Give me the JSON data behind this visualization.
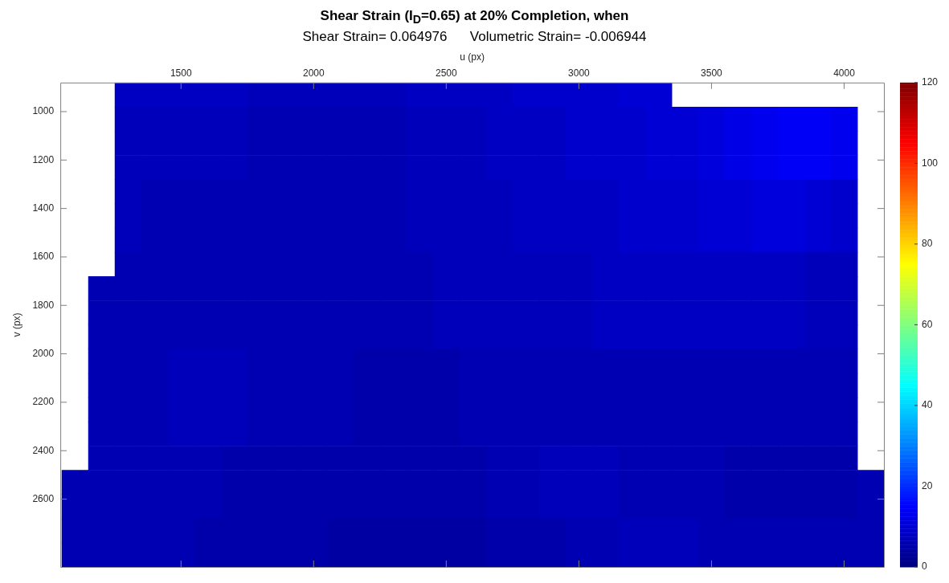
{
  "chart_data": {
    "type": "heatmap",
    "title": "Shear Strain (I$_{D}$=0.65) at 20% Completion, when",
    "subtitle": "Shear Strain= 0.064976      Volumetric Strain= -0.006944",
    "xlabel": "u (px)",
    "ylabel": "v (px)",
    "x": [
      1100,
      1200,
      1300,
      1400,
      1500,
      1600,
      1700,
      1800,
      1900,
      2000,
      2100,
      2200,
      2300,
      2400,
      2500,
      2600,
      2700,
      2800,
      2900,
      3000,
      3100,
      3200,
      3300,
      3400,
      3500,
      3600,
      3700,
      3800,
      3900,
      4000,
      4100
    ],
    "y": [
      930,
      1030,
      1130,
      1230,
      1330,
      1430,
      1530,
      1630,
      1730,
      1830,
      1930,
      2030,
      2130,
      2230,
      2330,
      2430,
      2530,
      2630,
      2730,
      2830
    ],
    "cells": [
      [
        null,
        null,
        8,
        8,
        8,
        8,
        8,
        7,
        7,
        7,
        7,
        7,
        7,
        8,
        8,
        8,
        8,
        9,
        9,
        9,
        9,
        10,
        10,
        null,
        null,
        null,
        null,
        null,
        null,
        null,
        null
      ],
      [
        null,
        null,
        7,
        7,
        7,
        7,
        7,
        6,
        6,
        6,
        6,
        6,
        6,
        7,
        7,
        7,
        8,
        8,
        8,
        9,
        9,
        9,
        10,
        10,
        11,
        12,
        13,
        14,
        14,
        13,
        null
      ],
      [
        null,
        null,
        7,
        7,
        7,
        7,
        7,
        6,
        6,
        6,
        6,
        6,
        6,
        7,
        7,
        7,
        8,
        8,
        8,
        9,
        9,
        9,
        10,
        10,
        11,
        12,
        13,
        14,
        14,
        13,
        null
      ],
      [
        null,
        null,
        7,
        7,
        7,
        7,
        7,
        6,
        6,
        6,
        6,
        6,
        6,
        7,
        7,
        7,
        8,
        8,
        8,
        9,
        9,
        9,
        10,
        10,
        11,
        12,
        13,
        14,
        14,
        13,
        null
      ],
      [
        null,
        null,
        7,
        6,
        6,
        6,
        6,
        6,
        6,
        6,
        6,
        6,
        6,
        7,
        7,
        7,
        7,
        8,
        8,
        8,
        8,
        9,
        9,
        9,
        10,
        10,
        11,
        11,
        10,
        9,
        null
      ],
      [
        null,
        null,
        7,
        6,
        6,
        6,
        6,
        6,
        6,
        6,
        6,
        6,
        6,
        7,
        7,
        7,
        7,
        8,
        8,
        8,
        8,
        9,
        9,
        9,
        10,
        10,
        11,
        11,
        10,
        9,
        null
      ],
      [
        null,
        null,
        7,
        6,
        6,
        6,
        6,
        6,
        6,
        6,
        6,
        6,
        6,
        7,
        7,
        7,
        7,
        8,
        8,
        8,
        8,
        9,
        9,
        9,
        10,
        10,
        11,
        11,
        10,
        9,
        null
      ],
      [
        null,
        null,
        6,
        6,
        6,
        6,
        6,
        6,
        6,
        6,
        6,
        6,
        6,
        6,
        7,
        7,
        7,
        7,
        7,
        7,
        8,
        8,
        8,
        8,
        8,
        8,
        8,
        8,
        7,
        7,
        null
      ],
      [
        null,
        6,
        6,
        6,
        6,
        6,
        6,
        6,
        6,
        6,
        6,
        6,
        6,
        6,
        7,
        7,
        7,
        7,
        7,
        7,
        8,
        8,
        8,
        8,
        8,
        8,
        8,
        8,
        7,
        7,
        null
      ],
      [
        null,
        6,
        6,
        6,
        6,
        6,
        6,
        6,
        6,
        6,
        6,
        6,
        6,
        6,
        7,
        7,
        7,
        7,
        7,
        7,
        8,
        8,
        8,
        8,
        8,
        8,
        8,
        8,
        7,
        7,
        null
      ],
      [
        null,
        6,
        6,
        6,
        6,
        6,
        6,
        6,
        6,
        6,
        6,
        6,
        6,
        6,
        7,
        7,
        7,
        7,
        7,
        7,
        8,
        8,
        8,
        8,
        8,
        8,
        8,
        8,
        7,
        7,
        null
      ],
      [
        null,
        6,
        6,
        6,
        7,
        7,
        7,
        6,
        6,
        6,
        6,
        5,
        5,
        5,
        5,
        6,
        6,
        6,
        6,
        6,
        6,
        6,
        6,
        6,
        6,
        6,
        6,
        6,
        6,
        6,
        null
      ],
      [
        null,
        6,
        6,
        6,
        7,
        7,
        7,
        6,
        6,
        6,
        6,
        5,
        5,
        5,
        5,
        6,
        6,
        6,
        6,
        6,
        6,
        6,
        6,
        6,
        6,
        6,
        6,
        6,
        6,
        6,
        null
      ],
      [
        null,
        6,
        6,
        6,
        7,
        7,
        7,
        6,
        6,
        6,
        6,
        5,
        5,
        5,
        5,
        6,
        6,
        6,
        6,
        6,
        6,
        6,
        6,
        6,
        6,
        6,
        6,
        6,
        6,
        6,
        null
      ],
      [
        null,
        6,
        6,
        6,
        7,
        7,
        7,
        6,
        6,
        6,
        6,
        5,
        5,
        5,
        5,
        6,
        6,
        6,
        6,
        6,
        6,
        6,
        6,
        6,
        6,
        6,
        6,
        6,
        6,
        6,
        null
      ],
      [
        null,
        6,
        6,
        6,
        6,
        6,
        5,
        5,
        5,
        5,
        5,
        5,
        5,
        5,
        5,
        5,
        6,
        6,
        7,
        7,
        7,
        6,
        6,
        6,
        6,
        5,
        5,
        5,
        5,
        5,
        null
      ],
      [
        6,
        6,
        6,
        6,
        6,
        6,
        5,
        5,
        5,
        5,
        5,
        5,
        5,
        5,
        5,
        5,
        6,
        6,
        7,
        7,
        7,
        6,
        6,
        6,
        6,
        5,
        5,
        5,
        5,
        5,
        6
      ],
      [
        6,
        6,
        6,
        6,
        6,
        6,
        5,
        5,
        5,
        5,
        5,
        5,
        5,
        5,
        5,
        5,
        6,
        6,
        7,
        7,
        7,
        6,
        6,
        6,
        6,
        5,
        5,
        5,
        5,
        5,
        6
      ],
      [
        6,
        6,
        6,
        6,
        6,
        5,
        5,
        5,
        5,
        5,
        4,
        4,
        4,
        4,
        4,
        4,
        5,
        5,
        5,
        6,
        6,
        7,
        7,
        7,
        6,
        6,
        6,
        6,
        6,
        6,
        6
      ],
      [
        6,
        6,
        6,
        6,
        6,
        5,
        5,
        5,
        5,
        5,
        4,
        4,
        4,
        4,
        4,
        4,
        5,
        5,
        5,
        6,
        6,
        7,
        7,
        7,
        6,
        6,
        6,
        6,
        6,
        6,
        6
      ]
    ],
    "clim": [
      0,
      120
    ],
    "cticks": [
      0,
      20,
      40,
      60,
      80,
      100,
      120
    ],
    "xlim": [
      1045,
      4150
    ],
    "xticks": [
      1500,
      2000,
      2500,
      3000,
      3500,
      4000
    ],
    "ylim": [
      2880,
      880
    ],
    "yticks": [
      1000,
      1200,
      1400,
      1600,
      1800,
      2000,
      2200,
      2400,
      2600
    ]
  }
}
